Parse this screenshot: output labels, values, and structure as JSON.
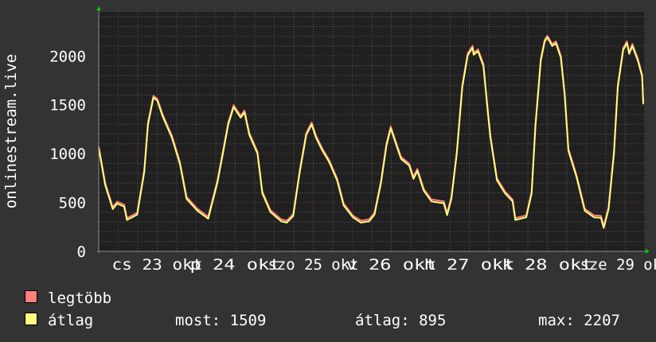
{
  "chart_data": {
    "type": "line",
    "ylabel": "onlinestream.live",
    "ylim": [
      0,
      2450
    ],
    "yticks": [
      0,
      500,
      1000,
      1500,
      2000
    ],
    "xlim": [
      "10-22 18:00",
      "10-29 18:00"
    ],
    "xtick_labels": [
      "cs 23 okt",
      "p 24 okt",
      "szo 25 okt",
      "v 26 okt",
      "h 27 okt",
      "k 28 okt",
      "sze 29 okt"
    ],
    "grid": true,
    "x": [
      "10-22 18:00",
      "10-22 20:00",
      "10-22 22:20",
      "10-22 23:40",
      "10-23 01:50",
      "10-23 02:40",
      "10-23 05:50",
      "10-23 08:00",
      "10-23 09:10",
      "10-23 10:50",
      "10-23 12:00",
      "10-23 13:40",
      "10-23 16:30",
      "10-23 19:00",
      "10-23 21:00",
      "10-24 00:20",
      "10-24 03:40",
      "10-24 06:30",
      "10-24 08:30",
      "10-24 09:50",
      "10-24 11:30",
      "10-24 13:40",
      "10-24 14:50",
      "10-24 16:20",
      "10-24 18:50",
      "10-24 20:20",
      "10-24 22:50",
      "10-25 02:10",
      "10-25 03:50",
      "10-25 05:50",
      "10-25 07:50",
      "10-25 09:50",
      "10-25 11:30",
      "10-25 12:50",
      "10-25 14:50",
      "10-25 16:50",
      "10-25 19:20",
      "10-25 21:20",
      "10-26 00:10",
      "10-26 02:40",
      "10-26 05:10",
      "10-26 06:50",
      "10-26 08:50",
      "10-26 10:30",
      "10-26 11:50",
      "10-26 13:20",
      "10-26 15:00",
      "10-26 17:30",
      "10-26 18:50",
      "10-26 20:00",
      "10-26 22:00",
      "10-27 00:20",
      "10-27 04:10",
      "10-27 05:10",
      "10-27 06:30",
      "10-27 08:10",
      "10-27 09:50",
      "10-27 11:30",
      "10-27 13:00",
      "10-27 13:20",
      "10-27 14:40",
      "10-27 16:20",
      "10-27 17:40",
      "10-27 18:30",
      "10-27 20:30",
      "10-27 23:00",
      "10-28 01:20",
      "10-28 02:10",
      "10-28 05:30",
      "10-28 07:10",
      "10-28 08:20",
      "10-28 10:00",
      "10-28 11:10",
      "10-28 12:00",
      "10-28 13:30",
      "10-28 14:40",
      "10-28 16:10",
      "10-28 17:20",
      "10-28 18:30",
      "10-28 21:00",
      "10-28 23:30",
      "10-29 02:20",
      "10-29 04:30",
      "10-29 05:20",
      "10-29 06:50",
      "10-29 08:30",
      "10-29 09:40",
      "10-29 11:20",
      "10-29 12:30",
      "10-29 13:10",
      "10-29 14:10",
      "10-29 15:50",
      "10-29 17:10",
      "10-29 17:30"
    ],
    "series": [
      {
        "name": "legtöbb",
        "color": "#ff7f7f",
        "values": [
          1075,
          697,
          452,
          509,
          477,
          341,
          395,
          830,
          1319,
          1592,
          1564,
          1401,
          1184,
          912,
          558,
          436,
          354,
          721,
          1075,
          1319,
          1496,
          1388,
          1442,
          1211,
          1021,
          613,
          422,
          327,
          314,
          381,
          830,
          1211,
          1319,
          1184,
          1048,
          939,
          748,
          491,
          368,
          314,
          327,
          395,
          721,
          1102,
          1279,
          1129,
          966,
          898,
          762,
          844,
          640,
          531,
          512,
          390,
          558,
          1021,
          1700,
          2027,
          2103,
          2032,
          2067,
          1918,
          1456,
          1184,
          748,
          613,
          531,
          341,
          368,
          613,
          1292,
          1972,
          2163,
          2207,
          2122,
          2149,
          2000,
          1619,
          1048,
          776,
          436,
          368,
          363,
          259,
          450,
          1021,
          1700,
          2081,
          2149,
          2040,
          2122,
          1972,
          1809,
          1529
        ]
      },
      {
        "name": "átlag",
        "color": "#ffff7f",
        "values": [
          1055,
          677,
          432,
          489,
          457,
          321,
          375,
          810,
          1299,
          1572,
          1544,
          1381,
          1164,
          892,
          538,
          416,
          334,
          701,
          1055,
          1299,
          1476,
          1368,
          1422,
          1191,
          1001,
          593,
          402,
          307,
          294,
          361,
          810,
          1191,
          1299,
          1164,
          1028,
          919,
          728,
          471,
          348,
          294,
          307,
          375,
          701,
          1082,
          1259,
          1109,
          946,
          878,
          742,
          824,
          620,
          511,
          492,
          370,
          538,
          1001,
          1680,
          2007,
          2083,
          2012,
          2047,
          1898,
          1436,
          1164,
          728,
          593,
          511,
          321,
          348,
          593,
          1272,
          1952,
          2143,
          2190,
          2102,
          2129,
          1980,
          1599,
          1028,
          756,
          416,
          348,
          343,
          239,
          430,
          1001,
          1680,
          2061,
          2129,
          2020,
          2102,
          1952,
          1789,
          1509
        ]
      }
    ]
  },
  "legend": {
    "items": [
      {
        "label": "legtöbb",
        "color": "#ff7f7f"
      },
      {
        "label": "átlag",
        "color": "#ffff7f"
      }
    ],
    "stats": {
      "current": "most: 1509",
      "average": "átlag: 895",
      "maximum": "max: 2207"
    }
  },
  "colors": {
    "background": "#333333",
    "plot": "#202020",
    "grid_minor": "#5a5a5a",
    "grid_major": "#7a3434",
    "axis_arrow": "#00cc00"
  }
}
